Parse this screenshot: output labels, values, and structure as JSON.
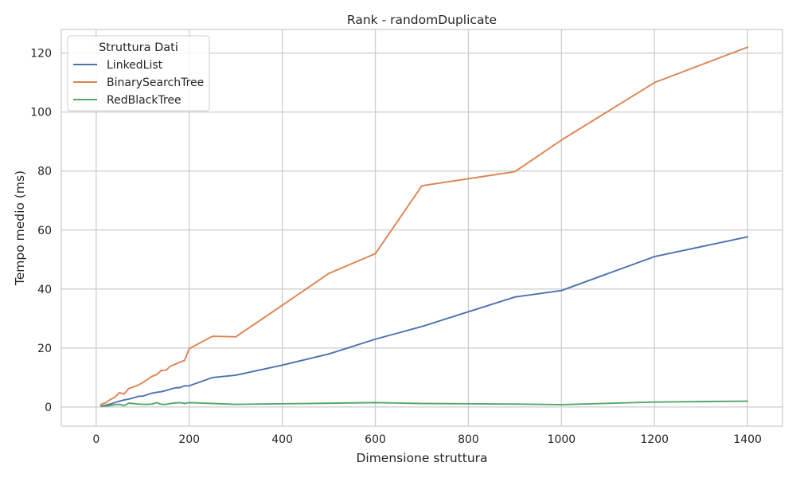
{
  "chart_data": {
    "type": "line",
    "title": "Rank - randomDuplicate",
    "xlabel": "Dimensione struttura",
    "ylabel": "Tempo medio (ms)",
    "xlim": [
      -75,
      1475
    ],
    "ylim": [
      -6.5,
      128
    ],
    "x_ticks": [
      0,
      200,
      400,
      600,
      800,
      1000,
      1200,
      1400
    ],
    "y_ticks": [
      0,
      20,
      40,
      60,
      80,
      100,
      120
    ],
    "grid": true,
    "legend": {
      "title": "Struttura Dati",
      "placement": "top-left"
    },
    "series": [
      {
        "name": "LinkedList",
        "color": "#4c72b0",
        "points": [
          [
            10,
            0.3
          ],
          [
            20,
            0.6
          ],
          [
            30,
            1.0
          ],
          [
            40,
            1.5
          ],
          [
            50,
            2.0
          ],
          [
            60,
            2.4
          ],
          [
            70,
            2.7
          ],
          [
            80,
            3.1
          ],
          [
            90,
            3.6
          ],
          [
            100,
            3.7
          ],
          [
            110,
            4.2
          ],
          [
            120,
            4.7
          ],
          [
            130,
            5.0
          ],
          [
            140,
            5.2
          ],
          [
            150,
            5.6
          ],
          [
            160,
            6.1
          ],
          [
            170,
            6.5
          ],
          [
            180,
            6.6
          ],
          [
            190,
            7.2
          ],
          [
            200,
            7.2
          ],
          [
            250,
            10.0
          ],
          [
            300,
            10.8
          ],
          [
            400,
            14.2
          ],
          [
            500,
            18.0
          ],
          [
            600,
            23.0
          ],
          [
            700,
            27.3
          ],
          [
            800,
            32.3
          ],
          [
            900,
            37.3
          ],
          [
            1000,
            39.5
          ],
          [
            1200,
            51.0
          ],
          [
            1400,
            57.7
          ]
        ]
      },
      {
        "name": "BinarySearchTree",
        "color": "#dd8452",
        "points": [
          [
            10,
            0.9
          ],
          [
            20,
            1.4
          ],
          [
            30,
            2.5
          ],
          [
            40,
            3.3
          ],
          [
            50,
            4.9
          ],
          [
            60,
            4.4
          ],
          [
            70,
            6.3
          ],
          [
            80,
            6.8
          ],
          [
            90,
            7.4
          ],
          [
            100,
            8.3
          ],
          [
            110,
            9.3
          ],
          [
            120,
            10.4
          ],
          [
            130,
            11.0
          ],
          [
            140,
            12.4
          ],
          [
            150,
            12.5
          ],
          [
            160,
            13.9
          ],
          [
            170,
            14.5
          ],
          [
            180,
            15.2
          ],
          [
            190,
            15.8
          ],
          [
            200,
            19.8
          ],
          [
            250,
            24.0
          ],
          [
            300,
            23.8
          ],
          [
            400,
            34.5
          ],
          [
            500,
            45.3
          ],
          [
            600,
            52.0
          ],
          [
            700,
            75.0
          ],
          [
            900,
            79.8
          ],
          [
            1000,
            90.5
          ],
          [
            1200,
            110.0
          ],
          [
            1400,
            122.0
          ]
        ]
      },
      {
        "name": "RedBlackTree",
        "color": "#55a868",
        "points": [
          [
            10,
            0.2
          ],
          [
            20,
            0.3
          ],
          [
            30,
            0.5
          ],
          [
            40,
            0.8
          ],
          [
            50,
            0.9
          ],
          [
            60,
            0.5
          ],
          [
            70,
            1.3
          ],
          [
            80,
            1.2
          ],
          [
            90,
            1.0
          ],
          [
            100,
            0.9
          ],
          [
            110,
            0.9
          ],
          [
            120,
            1.0
          ],
          [
            130,
            1.5
          ],
          [
            140,
            0.9
          ],
          [
            150,
            0.9
          ],
          [
            160,
            1.2
          ],
          [
            170,
            1.4
          ],
          [
            180,
            1.5
          ],
          [
            190,
            1.2
          ],
          [
            200,
            1.5
          ],
          [
            300,
            0.9
          ],
          [
            400,
            1.1
          ],
          [
            500,
            1.3
          ],
          [
            600,
            1.5
          ],
          [
            700,
            1.2
          ],
          [
            800,
            1.1
          ],
          [
            900,
            1.0
          ],
          [
            1000,
            0.8
          ],
          [
            1200,
            1.7
          ],
          [
            1400,
            2.0
          ]
        ]
      }
    ]
  }
}
